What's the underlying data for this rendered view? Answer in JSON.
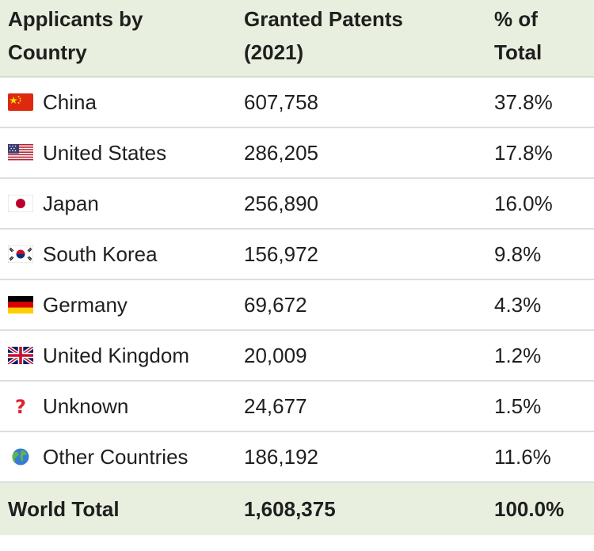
{
  "headers": {
    "country_line1": "Applicants by",
    "country_line2": "Country",
    "patents_line1": "Granted Patents",
    "patents_line2": "(2021)",
    "pct_line1": "% of",
    "pct_line2": "Total"
  },
  "rows": [
    {
      "icon": "china-flag-icon",
      "country": "China",
      "patents": "607,758",
      "pct": "37.8%"
    },
    {
      "icon": "united-states-flag-icon",
      "country": "United States",
      "patents": "286,205",
      "pct": "17.8%"
    },
    {
      "icon": "japan-flag-icon",
      "country": "Japan",
      "patents": "256,890",
      "pct": "16.0%"
    },
    {
      "icon": "south-korea-flag-icon",
      "country": "South Korea",
      "patents": "156,972",
      "pct": "9.8%"
    },
    {
      "icon": "germany-flag-icon",
      "country": "Germany",
      "patents": "69,672",
      "pct": "4.3%"
    },
    {
      "icon": "united-kingdom-flag-icon",
      "country": "United Kingdom",
      "patents": "20,009",
      "pct": "1.2%"
    },
    {
      "icon": "question-mark-icon",
      "country": "Unknown",
      "patents": "24,677",
      "pct": "1.5%"
    },
    {
      "icon": "globe-icon",
      "country": "Other Countries",
      "patents": "186,192",
      "pct": "11.6%"
    }
  ],
  "footer": {
    "label": "World Total",
    "patents": "1,608,375",
    "pct": "100.0%"
  },
  "colors": {
    "header_bg": "#e8efdf",
    "row_border": "#dedede"
  },
  "chart_data": {
    "type": "table",
    "columns": [
      "Applicants by Country",
      "Granted Patents (2021)",
      "% of Total"
    ],
    "rows": [
      [
        "China",
        607758,
        37.8
      ],
      [
        "United States",
        286205,
        17.8
      ],
      [
        "Japan",
        256890,
        16.0
      ],
      [
        "South Korea",
        156972,
        9.8
      ],
      [
        "Germany",
        69672,
        4.3
      ],
      [
        "United Kingdom",
        20009,
        1.2
      ],
      [
        "Unknown",
        24677,
        1.5
      ],
      [
        "Other Countries",
        186192,
        11.6
      ]
    ],
    "total": [
      "World Total",
      1608375,
      100.0
    ]
  }
}
